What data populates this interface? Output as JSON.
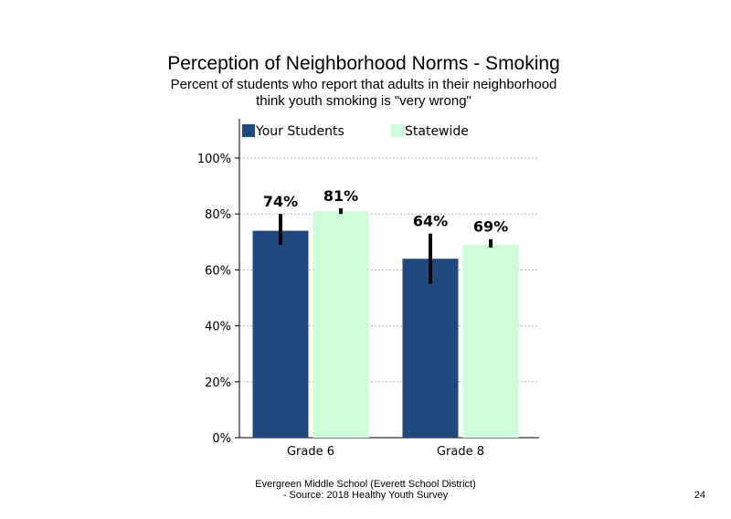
{
  "slide": {
    "title": "Perception of Neighborhood Norms - Smoking",
    "subtitle_line1": "Percent of students who report that adults in their neighborhood",
    "subtitle_line2": "think youth smoking is \"very wrong\"",
    "footer_line1": "Evergreen Middle  School (Everett School District)",
    "footer_line2": "- Source: 2018 Healthy  Youth Survey",
    "page_number": "24"
  },
  "chart_data": {
    "type": "bar",
    "categories": [
      "Grade 6",
      "Grade 8"
    ],
    "series": [
      {
        "name": "Your Students",
        "values": [
          74,
          64
        ],
        "labels": [
          "74%",
          "64%"
        ],
        "error_low": [
          69,
          55
        ],
        "error_high": [
          80,
          73
        ],
        "color": "#1f497d"
      },
      {
        "name": "Statewide",
        "values": [
          81,
          69
        ],
        "labels": [
          "81%",
          "69%"
        ],
        "error_low": [
          80,
          68
        ],
        "error_high": [
          82,
          71
        ],
        "color": "#ccffd9"
      }
    ],
    "yticks": [
      "0%",
      "20%",
      "40%",
      "60%",
      "80%",
      "100%"
    ],
    "ytick_values": [
      0,
      20,
      40,
      60,
      80,
      100
    ],
    "ylim": [
      0,
      100
    ],
    "grid": true,
    "legend_position": "top"
  }
}
